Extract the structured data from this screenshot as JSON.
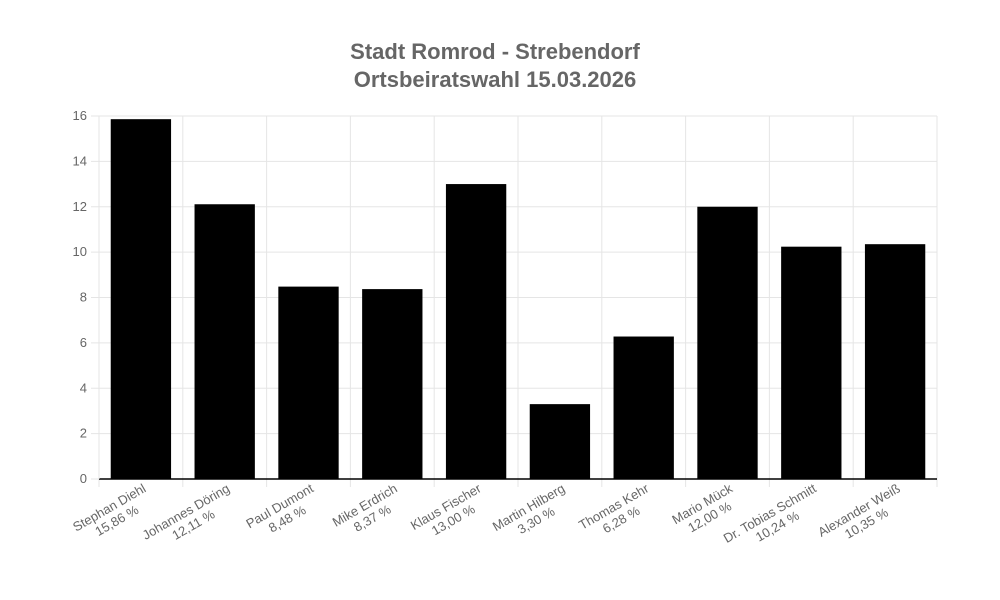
{
  "chart_data": {
    "type": "bar",
    "title": [
      "Stadt Romrod - Strebendorf",
      "Ortsbeiratswahl 15.03.2026"
    ],
    "categories": [
      [
        "Stephan Diehl",
        "15,86 %"
      ],
      [
        "Johannes Döring",
        "12,11 %"
      ],
      [
        "Paul Dumont",
        "8,48 %"
      ],
      [
        "Mike Erdrich",
        "8,37 %"
      ],
      [
        "Klaus Fischer",
        "13,00 %"
      ],
      [
        "Martin Hilberg",
        "3,30 %"
      ],
      [
        "Thomas Kehr",
        "6,28 %"
      ],
      [
        "Mario Mück",
        "12,00 %"
      ],
      [
        "Dr. Tobias Schmitt",
        "10,24 %"
      ],
      [
        "Alexander Weiß",
        "10,35 %"
      ]
    ],
    "values": [
      15.86,
      12.11,
      8.48,
      8.37,
      13.0,
      3.3,
      6.28,
      12.0,
      10.24,
      10.35
    ],
    "ylim": [
      0,
      16
    ],
    "yticks": [
      "0",
      "2",
      "4",
      "6",
      "8",
      "10",
      "12",
      "14",
      "16"
    ],
    "grid": true,
    "colors": {
      "bar": "#000000",
      "grid": "#e5e5e5",
      "axis": "#000000",
      "text": "#666666"
    }
  }
}
